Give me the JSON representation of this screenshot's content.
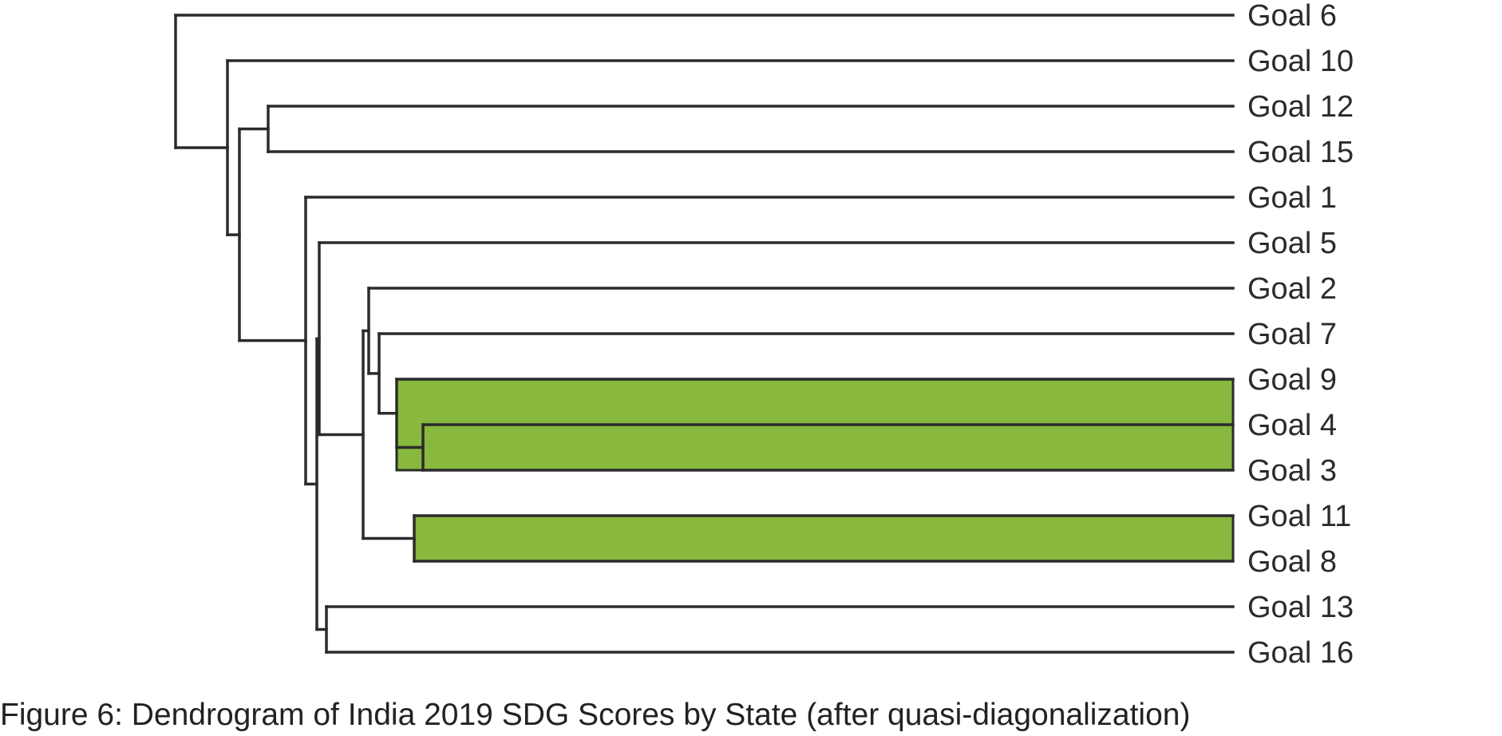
{
  "caption": "Figure 6: Dendrogram of India 2019 SDG Scores by State (after quasi-diagonalization)",
  "highlight_color": "#88b83e",
  "line_color": "#2b2b2b",
  "leaves": [
    "Goal 6",
    "Goal 10",
    "Goal 12",
    "Goal 15",
    "Goal 1",
    "Goal 5",
    "Goal 2",
    "Goal 7",
    "Goal 9",
    "Goal 4",
    "Goal 3",
    "Goal 11",
    "Goal 8",
    "Goal 13",
    "Goal 16"
  ],
  "highlighted_clusters": [
    [
      "Goal 9",
      "Goal 4",
      "Goal 3"
    ],
    [
      "Goal 4",
      "Goal 3"
    ],
    [
      "Goal 11",
      "Goal 8"
    ]
  ]
}
